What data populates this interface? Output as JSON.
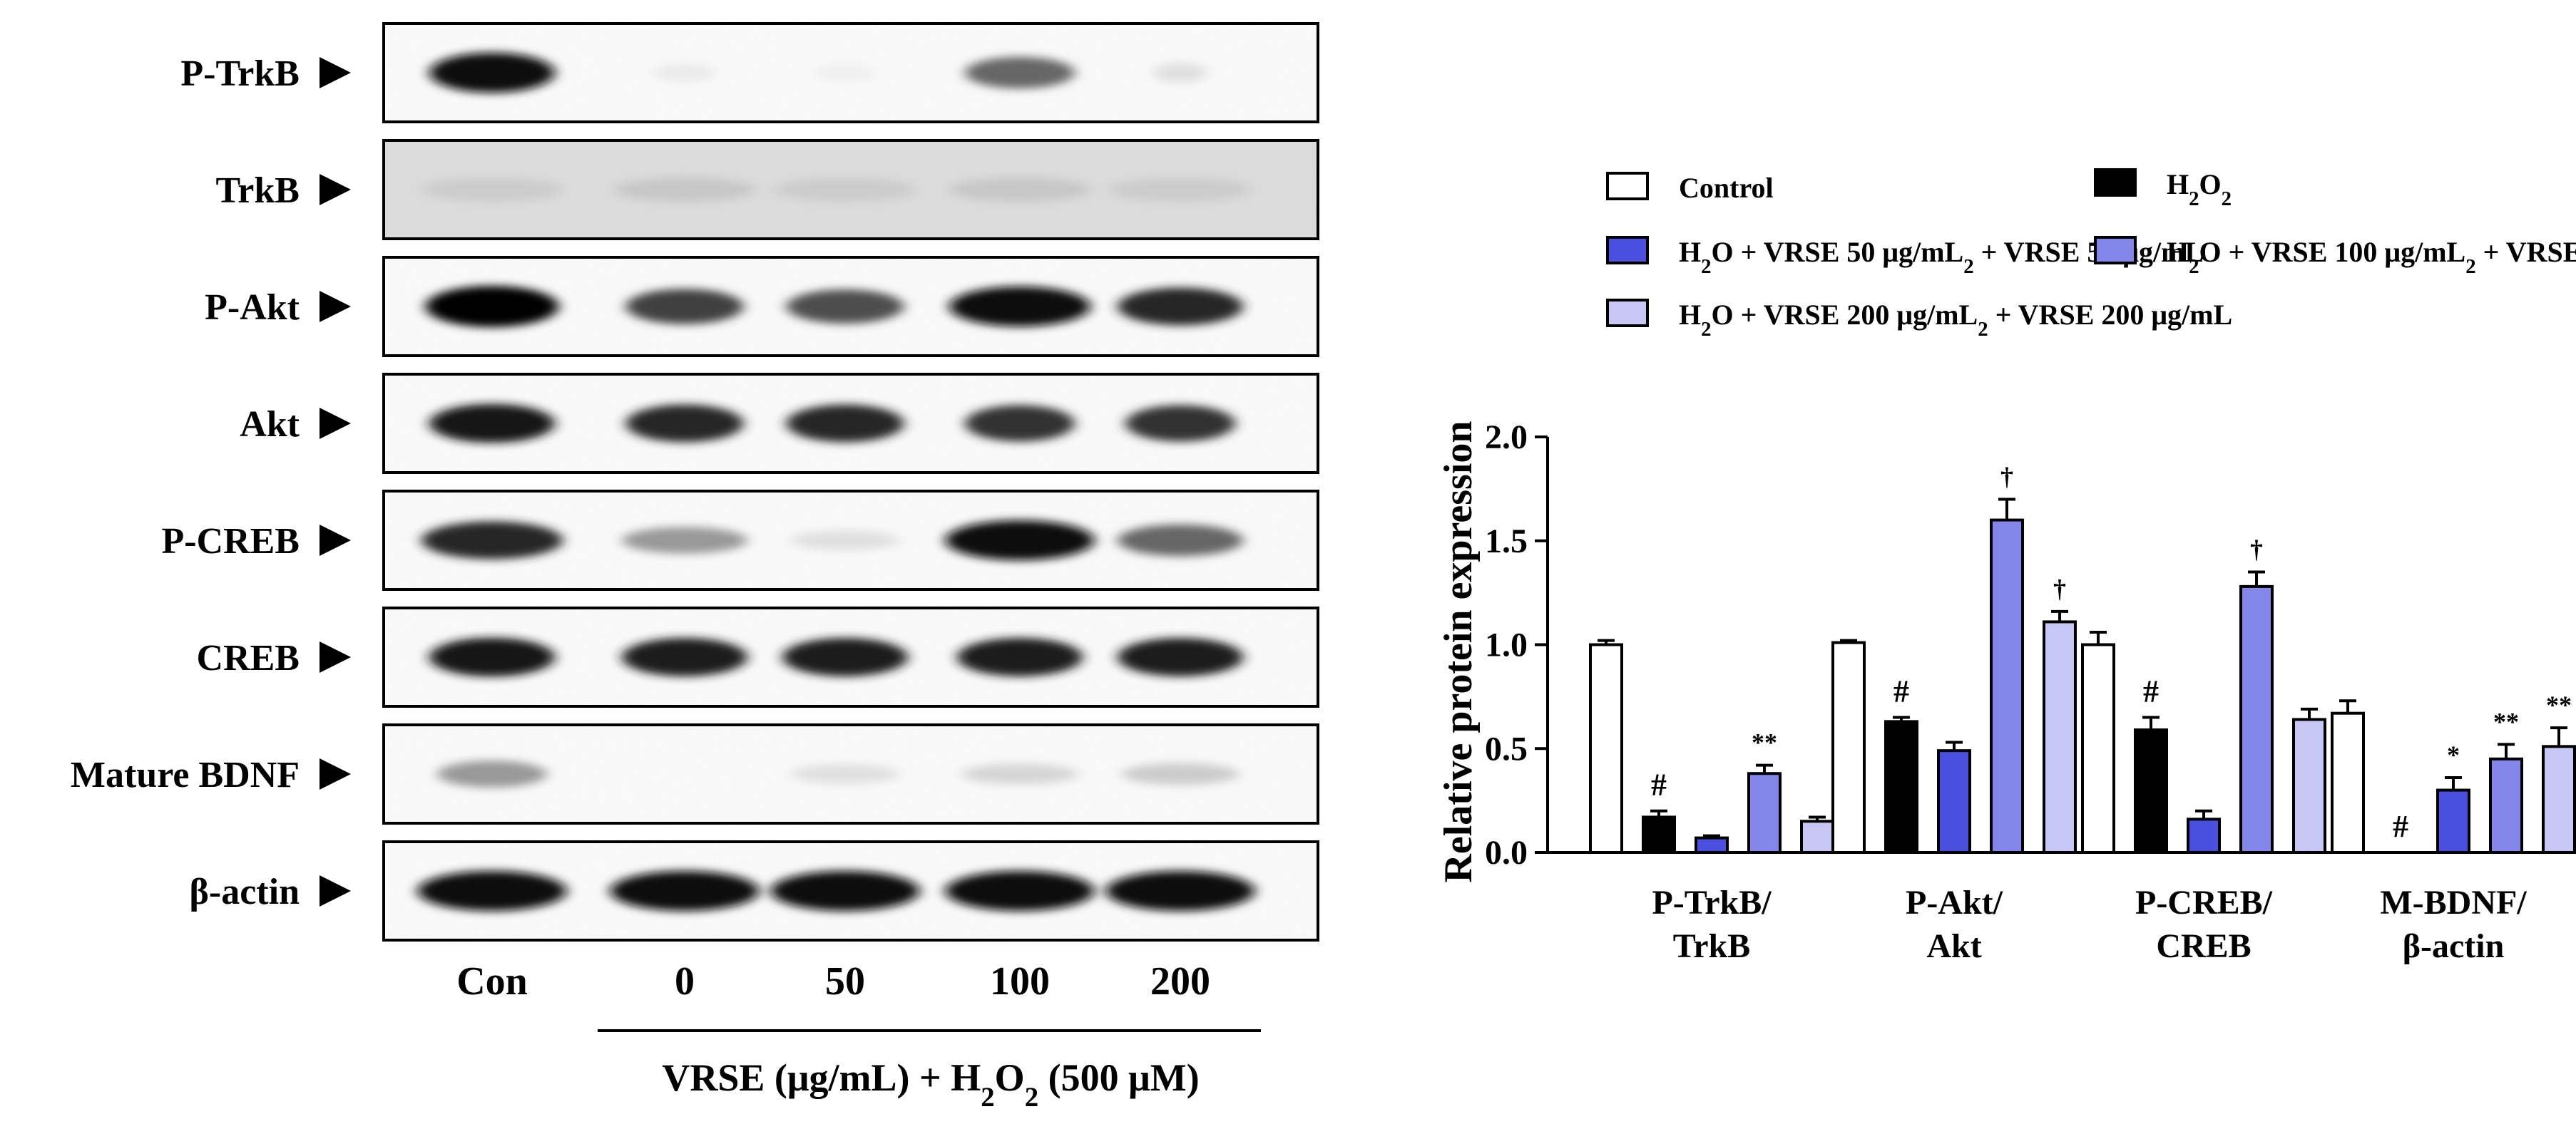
{
  "blot": {
    "rows": [
      {
        "label": "P-TrkB",
        "intensity": [
          0.95,
          0.08,
          0.06,
          0.6,
          0.12
        ],
        "band_width": [
          0.8,
          0.4,
          0.4,
          0.7,
          0.35
        ]
      },
      {
        "label": "TrkB",
        "intensity": [
          0.2,
          0.22,
          0.2,
          0.22,
          0.2
        ],
        "band_width": [
          0.9,
          0.9,
          0.9,
          0.9,
          0.9
        ]
      },
      {
        "label": "P-Akt",
        "intensity": [
          1.0,
          0.75,
          0.7,
          0.95,
          0.85
        ],
        "band_width": [
          0.85,
          0.75,
          0.75,
          0.9,
          0.8
        ]
      },
      {
        "label": "Akt",
        "intensity": [
          0.9,
          0.85,
          0.85,
          0.8,
          0.8
        ],
        "band_width": [
          0.8,
          0.75,
          0.75,
          0.7,
          0.7
        ]
      },
      {
        "label": "P-CREB",
        "intensity": [
          0.85,
          0.4,
          0.12,
          0.95,
          0.6
        ],
        "band_width": [
          0.9,
          0.8,
          0.7,
          0.95,
          0.8
        ]
      },
      {
        "label": "CREB",
        "intensity": [
          0.9,
          0.88,
          0.88,
          0.88,
          0.88
        ],
        "band_width": [
          0.8,
          0.8,
          0.8,
          0.8,
          0.8
        ]
      },
      {
        "label": "Mature BDNF",
        "intensity": [
          0.4,
          0.0,
          0.12,
          0.16,
          0.2
        ],
        "band_width": [
          0.7,
          0.0,
          0.7,
          0.75,
          0.75
        ]
      },
      {
        "label": "β-actin",
        "intensity": [
          0.95,
          0.95,
          0.95,
          0.95,
          0.95
        ],
        "band_width": [
          0.95,
          0.95,
          0.95,
          0.95,
          0.95
        ]
      }
    ],
    "lanes": [
      "Con",
      "0",
      "50",
      "100",
      "200"
    ],
    "treatment_label": "VRSE (μg/mL) + H",
    "treatment_sub": "2",
    "treatment_tail": "O",
    "treatment_sub2": "2",
    "treatment_end": " (500 μM)"
  },
  "chart_data": {
    "type": "bar",
    "ylabel": "Relative protein expression",
    "ylim": [
      0,
      2.0
    ],
    "yticks": [
      "0.0",
      "0.5",
      "1.0",
      "1.5",
      "2.0"
    ],
    "categories": [
      [
        "P-TrkB/",
        "TrkB"
      ],
      [
        "P-Akt/",
        "Akt"
      ],
      [
        "P-CREB/",
        "CREB"
      ],
      [
        "M-BDNF/",
        "β-actin"
      ]
    ],
    "series": [
      {
        "name": "Control",
        "color": "#ffffff",
        "values": [
          1.0,
          1.01,
          1.0,
          0.67
        ],
        "errors": [
          0.02,
          0.01,
          0.06,
          0.06
        ],
        "marks": [
          "",
          "",
          "",
          ""
        ]
      },
      {
        "name": "H2O2",
        "color": "#000000",
        "values": [
          0.17,
          0.63,
          0.59,
          0.0
        ],
        "errors": [
          0.03,
          0.02,
          0.06,
          0.0
        ],
        "marks": [
          "#",
          "#",
          "#",
          "#"
        ]
      },
      {
        "name": "H2O2 + VRSE 50 μg/mL",
        "color": "#4b4fe0",
        "values": [
          0.07,
          0.49,
          0.16,
          0.3
        ],
        "errors": [
          0.01,
          0.04,
          0.04,
          0.06
        ],
        "marks": [
          "",
          "",
          "",
          "*"
        ]
      },
      {
        "name": "H2O2 + VRSE 100 μg/mL",
        "color": "#8586ea",
        "values": [
          0.38,
          1.6,
          1.28,
          0.45
        ],
        "errors": [
          0.04,
          0.1,
          0.07,
          0.07
        ],
        "marks": [
          "**",
          "†",
          "†",
          "**"
        ]
      },
      {
        "name": "H2O2 + VRSE 200 μg/mL",
        "color": "#c6c7f4",
        "values": [
          0.15,
          1.11,
          0.64,
          0.51
        ],
        "errors": [
          0.02,
          0.05,
          0.05,
          0.09
        ],
        "marks": [
          "",
          "†",
          "",
          "**"
        ]
      }
    ],
    "legend": [
      {
        "text": "Control",
        "sub": "",
        "rest": ""
      },
      {
        "text": "H",
        "sub": "2",
        "rest": "O2"
      },
      {
        "text": "H",
        "sub": "2",
        "rest": "O2 + VRSE 50 μg/mL"
      },
      {
        "text": "H",
        "sub": "2",
        "rest": "O2 + VRSE 100 μg/mL"
      },
      {
        "text": "H",
        "sub": "2",
        "rest": "O2 + VRSE 200 μg/mL"
      }
    ],
    "legend_placement": "top"
  }
}
